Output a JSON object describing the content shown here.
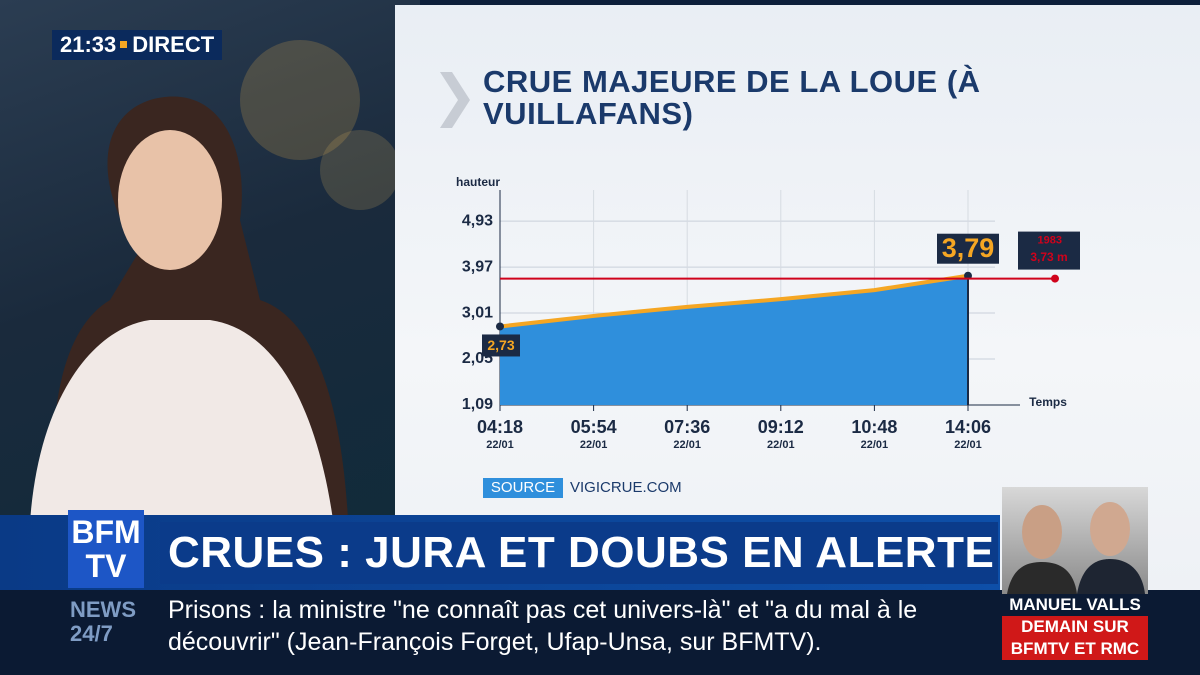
{
  "header": {
    "time": "21:33",
    "live": "DIRECT"
  },
  "chart_data": {
    "type": "area",
    "title": "CRUE MAJEURE DE LA LOUE (À VUILLAFANS)",
    "y_label": "hauteur",
    "x_label": "Temps",
    "categories": [
      "04:18",
      "05:54",
      "07:36",
      "09:12",
      "10:48",
      "14:06"
    ],
    "x_sublabels": [
      "22/01",
      "22/01",
      "22/01",
      "22/01",
      "22/01",
      "22/01"
    ],
    "series": [
      {
        "name": "hauteur",
        "color": "#2f8fdc",
        "line_color": "#f5a623",
        "values": [
          2.73,
          2.95,
          3.14,
          3.3,
          3.49,
          3.79
        ],
        "value_labels": [
          "2,73",
          null,
          null,
          null,
          null,
          "3,79"
        ]
      }
    ],
    "reference": {
      "label": "1983",
      "value": 3.73,
      "value_label": "3,73 m",
      "color": "#d0021b"
    },
    "ylim": [
      1.09,
      5.58
    ],
    "yticks": [
      {
        "value": 1.09,
        "label": "1,09"
      },
      {
        "value": 2.05,
        "label": "2,05"
      },
      {
        "value": 3.01,
        "label": "3,01"
      },
      {
        "value": 3.97,
        "label": "3,97"
      },
      {
        "value": 4.93,
        "label": "4,93"
      }
    ],
    "grid": true,
    "source_tag": "SOURCE",
    "source": "VIGICRUE.COM"
  },
  "logo": {
    "line1": "BFM",
    "line2": "TV"
  },
  "headline": "CRUES : JURA ET DOUBS EN ALERTE ROUGE",
  "ticker": {
    "channel_line1": "NEWS",
    "channel_line2": "24/7",
    "text": "Prisons : la ministre \"ne connaît pas cet univers-là\" et \"a du mal à le découvrir\" (Jean-François Forget, Ufap-Unsa, sur BFMTV)."
  },
  "promo": {
    "name": "MANUEL VALLS",
    "line1": "DEMAIN SUR",
    "line2": "BFMTV ET RMC"
  }
}
